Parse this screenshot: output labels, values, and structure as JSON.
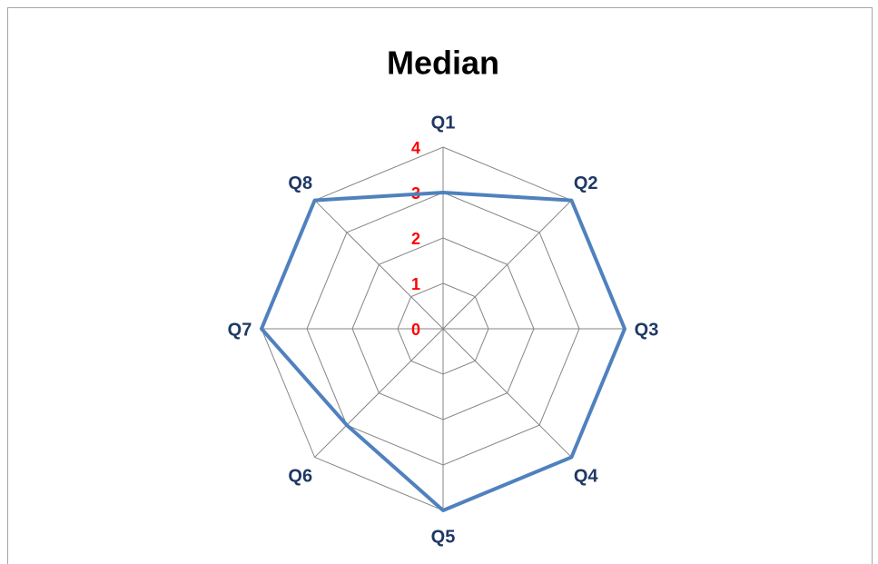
{
  "chart_data": {
    "type": "radar",
    "title": "Median",
    "categories": [
      "Q1",
      "Q2",
      "Q3",
      "Q4",
      "Q5",
      "Q6",
      "Q7",
      "Q8"
    ],
    "values": [
      3,
      4,
      4,
      4,
      4,
      3,
      4,
      4
    ],
    "color": "#4f81bd",
    "ylim": [
      0,
      4
    ],
    "yticks": [
      0,
      1,
      2,
      3,
      4
    ],
    "grid": true,
    "tick_color": "#ff0000",
    "label_color": "#1f3864"
  }
}
